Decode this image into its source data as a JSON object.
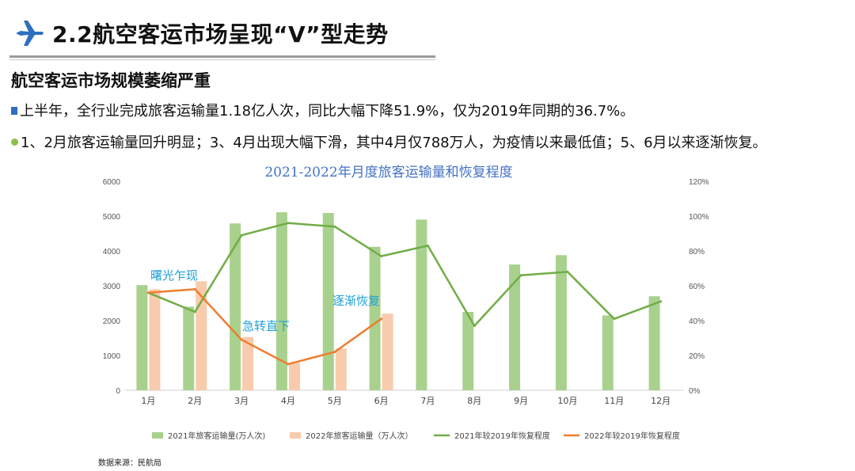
{
  "header": {
    "title": "2.2航空客运市场呈现“V”型走势",
    "icon": "airplane-icon",
    "accent_color": "#2e6fc1"
  },
  "subheading": "航空客运市场规模萎缩严重",
  "bullets": [
    "上半年，全行业完成旅客运输量1.18亿人次，同比大幅下降51.9%，仅为2019年同期的36.7%。",
    "1、2月旅客运输量回升明显；3、4月出现大幅下滑，其中4月仅788万人，为疫情以来最低值；5、6月以来逐渐恢复。"
  ],
  "chart_data": {
    "type": "bar+line",
    "title": "2021-2022年月度旅客运输量和恢复程度",
    "categories": [
      "1月",
      "2月",
      "3月",
      "4月",
      "5月",
      "6月",
      "7月",
      "8月",
      "9月",
      "10月",
      "11月",
      "12月"
    ],
    "left_axis": {
      "min": 0,
      "max": 6000,
      "ticks": [
        "0",
        "1000",
        "2000",
        "3000",
        "4000",
        "5000",
        "6000"
      ]
    },
    "right_axis": {
      "min": 0,
      "max": 120,
      "ticks": [
        "0%",
        "20%",
        "40%",
        "60%",
        "80%",
        "100%",
        "120%"
      ]
    },
    "bar_series": [
      {
        "name": "2021年旅客运输量(万人次)",
        "color": "#a9d18e",
        "values": [
          3020,
          2400,
          4790,
          5110,
          5090,
          4120,
          4900,
          2250,
          3610,
          3880,
          2150,
          2700
        ]
      },
      {
        "name": "2022年旅客运输量（万人次）",
        "color": "#f8cbad",
        "values": [
          2900,
          3130,
          1530,
          788,
          1200,
          2200,
          null,
          null,
          null,
          null,
          null,
          null
        ]
      }
    ],
    "line_series": [
      {
        "name": "2021年较2019年恢复程度",
        "color": "#70ad47",
        "values": [
          56,
          45,
          89,
          96,
          94,
          77,
          83,
          37,
          66,
          68,
          41,
          51
        ]
      },
      {
        "name": "2022年较2019年恢复程度",
        "color": "#ed7d31",
        "values": [
          56,
          58,
          29,
          15,
          22,
          41,
          null,
          null,
          null,
          null,
          null,
          null
        ]
      }
    ],
    "annotations": [
      {
        "text": "曙光乍现",
        "month": "1月"
      },
      {
        "text": "急转直下",
        "month": "3月"
      },
      {
        "text": "逐渐恢复",
        "month": "5月"
      }
    ],
    "annotation_color": "#1ea0d8",
    "title_color": "#4472c4"
  },
  "source": "数据来源：民航局"
}
